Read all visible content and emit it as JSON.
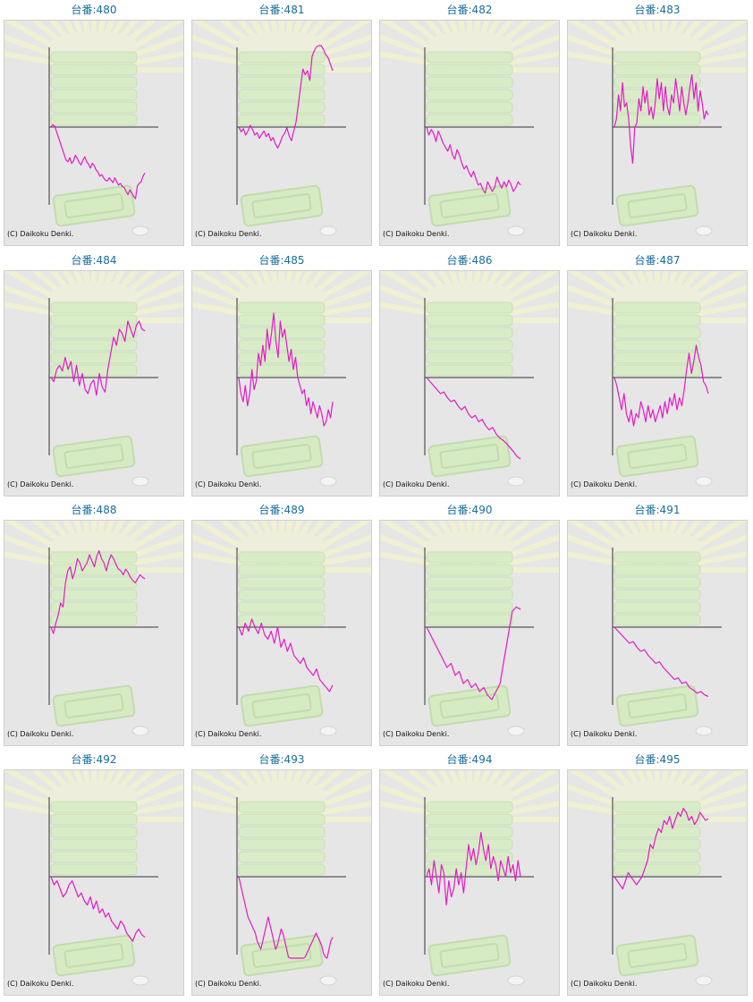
{
  "copyright": "(C) Daikoku Denki.",
  "line_color": "#e619c8",
  "chart_data": [
    {
      "type": "line",
      "title": "台番:480",
      "values": [
        0,
        3,
        1,
        -6,
        -13,
        -20,
        -27,
        -34,
        -41,
        -43,
        -38,
        -45,
        -42,
        -35,
        -39,
        -44,
        -47,
        -41,
        -37,
        -43,
        -46,
        -51,
        -45,
        -48,
        -53,
        -56,
        -61,
        -59,
        -63,
        -66,
        -67,
        -63,
        -66,
        -69,
        -63,
        -68,
        -72,
        -70,
        -74,
        -75,
        -80,
        -84,
        -78,
        -82,
        -86,
        -89,
        -73,
        -70,
        -68,
        -61,
        -57
      ]
    },
    {
      "type": "line",
      "title": "台番:481",
      "values": [
        0,
        -6,
        -2,
        -10,
        -5,
        2,
        -3,
        -10,
        -7,
        -14,
        -9,
        -5,
        -12,
        -8,
        -17,
        -13,
        -21,
        -26,
        -20,
        -12,
        -8,
        -1,
        -11,
        -17,
        -5,
        6,
        28,
        50,
        72,
        65,
        70,
        58,
        88,
        95,
        100,
        110,
        104,
        96,
        90,
        86,
        78,
        70
      ]
    },
    {
      "type": "line",
      "title": "台番:482",
      "values": [
        0,
        -10,
        -3,
        -8,
        -18,
        -5,
        -12,
        -20,
        -25,
        -30,
        -22,
        -34,
        -40,
        -28,
        -35,
        -45,
        -52,
        -48,
        -56,
        -62,
        -55,
        -64,
        -72,
        -70,
        -78,
        -82,
        -68,
        -74,
        -80,
        -75,
        -62,
        -70,
        -76,
        -68,
        -74,
        -66,
        -72,
        -80,
        -75,
        -68,
        -72
      ]
    },
    {
      "type": "line",
      "title": "台番:483",
      "values": [
        0,
        10,
        40,
        20,
        55,
        25,
        30,
        10,
        -25,
        -45,
        0,
        5,
        35,
        20,
        50,
        30,
        45,
        15,
        25,
        10,
        30,
        60,
        35,
        55,
        20,
        50,
        25,
        15,
        40,
        30,
        60,
        40,
        20,
        50,
        30,
        15,
        30,
        50,
        65,
        35,
        55,
        20,
        45,
        30,
        10,
        20,
        15
      ]
    },
    {
      "type": "line",
      "title": "台番:484",
      "values": [
        0,
        -5,
        10,
        15,
        8,
        25,
        10,
        20,
        -5,
        15,
        -10,
        5,
        -15,
        -20,
        -8,
        -3,
        -22,
        5,
        -12,
        -18,
        10,
        30,
        50,
        40,
        60,
        55,
        45,
        70,
        60,
        50,
        65,
        70,
        60,
        58
      ]
    },
    {
      "type": "line",
      "title": "台番:485",
      "values": [
        0,
        -20,
        -30,
        -10,
        -35,
        -20,
        10,
        -15,
        -5,
        30,
        15,
        40,
        20,
        60,
        35,
        55,
        80,
        45,
        25,
        70,
        50,
        60,
        40,
        20,
        35,
        10,
        25,
        0,
        -10,
        -20,
        -15,
        -35,
        -25,
        -45,
        -30,
        -40,
        -50,
        -35,
        -45,
        -60,
        -55,
        -40,
        -50,
        -30
      ]
    },
    {
      "type": "line",
      "title": "台番:486",
      "values": [
        0,
        -5,
        -10,
        -15,
        -20,
        -18,
        -25,
        -30,
        -28,
        -35,
        -40,
        -36,
        -45,
        -50,
        -47,
        -55,
        -52,
        -60,
        -65,
        -62,
        -70,
        -75,
        -78,
        -82,
        -87,
        -92,
        -98,
        -102
      ]
    },
    {
      "type": "line",
      "title": "台番:487",
      "values": [
        0,
        -10,
        -25,
        -40,
        -20,
        -45,
        -55,
        -40,
        -60,
        -45,
        -50,
        -30,
        -40,
        -55,
        -35,
        -50,
        -40,
        -55,
        -45,
        -35,
        -50,
        -30,
        -45,
        -25,
        -35,
        -20,
        -40,
        -25,
        -35,
        -15,
        10,
        30,
        5,
        20,
        40,
        25,
        15,
        -5,
        -10,
        -20
      ]
    },
    {
      "type": "line",
      "title": "台番:488",
      "values": [
        0,
        -8,
        5,
        15,
        30,
        25,
        55,
        70,
        75,
        60,
        70,
        85,
        80,
        70,
        75,
        80,
        90,
        82,
        75,
        88,
        95,
        85,
        80,
        70,
        82,
        90,
        85,
        78,
        72,
        70,
        65,
        72,
        68,
        62,
        58,
        55,
        60,
        65,
        62,
        60
      ]
    },
    {
      "type": "line",
      "title": "台番:489",
      "values": [
        0,
        -10,
        5,
        -5,
        10,
        0,
        -8,
        5,
        -10,
        -15,
        -5,
        -20,
        0,
        -25,
        -15,
        -30,
        -20,
        -35,
        -40,
        -45,
        -38,
        -50,
        -55,
        -60,
        -52,
        -65,
        -70,
        -75,
        -80,
        -72
      ]
    },
    {
      "type": "line",
      "title": "台番:490",
      "values": [
        0,
        -10,
        -20,
        -30,
        -40,
        -50,
        -45,
        -60,
        -55,
        -70,
        -65,
        -75,
        -70,
        -80,
        -75,
        -85,
        -90,
        -80,
        -70,
        -40,
        -10,
        20,
        25,
        22
      ]
    },
    {
      "type": "line",
      "title": "台番:491",
      "values": [
        0,
        -5,
        -10,
        -15,
        -20,
        -18,
        -25,
        -30,
        -28,
        -35,
        -40,
        -45,
        -43,
        -50,
        -55,
        -60,
        -65,
        -63,
        -70,
        -68,
        -75,
        -78,
        -82,
        -80,
        -84,
        -86
      ]
    },
    {
      "type": "line",
      "title": "台番:492",
      "values": [
        0,
        -10,
        -5,
        -15,
        -25,
        -20,
        -10,
        -5,
        -15,
        -25,
        -20,
        -30,
        -35,
        -25,
        -40,
        -30,
        -45,
        -40,
        -50,
        -45,
        -55,
        -60,
        -65,
        -55,
        -60,
        -70,
        -75,
        -80,
        -70,
        -65,
        -72,
        -75
      ]
    },
    {
      "type": "line",
      "title": "台番:493",
      "values": [
        0,
        -10,
        -20,
        -30,
        -40,
        -50,
        -55,
        -60,
        -65,
        -70,
        -80,
        -85,
        -90,
        -80,
        -70,
        -60,
        -50,
        -60,
        -70,
        -80,
        -90,
        -85,
        -75,
        -65,
        -70,
        -80,
        -90,
        -100,
        -110,
        -120,
        -130,
        -125,
        -120,
        -115,
        -110,
        -105,
        -100,
        -95,
        -90,
        -85,
        -80,
        -75,
        -70,
        -75,
        -80,
        -85,
        -95,
        -100,
        -105,
        -90,
        -80,
        -75
      ]
    },
    {
      "type": "line",
      "title": "台番:494",
      "values": [
        0,
        10,
        -10,
        20,
        0,
        -20,
        15,
        5,
        -35,
        -5,
        -25,
        -15,
        10,
        -10,
        5,
        -20,
        10,
        40,
        20,
        35,
        15,
        30,
        55,
        35,
        20,
        40,
        10,
        25,
        15,
        -5,
        20,
        10,
        0,
        25,
        5,
        15,
        -5,
        20,
        0
      ]
    },
    {
      "type": "line",
      "title": "台番:495",
      "values": [
        0,
        -5,
        -10,
        -15,
        -5,
        5,
        0,
        -5,
        -10,
        -5,
        0,
        10,
        20,
        40,
        35,
        50,
        60,
        55,
        70,
        65,
        75,
        60,
        70,
        80,
        75,
        85,
        80,
        70,
        75,
        65,
        70,
        80,
        75,
        70,
        72
      ]
    }
  ]
}
